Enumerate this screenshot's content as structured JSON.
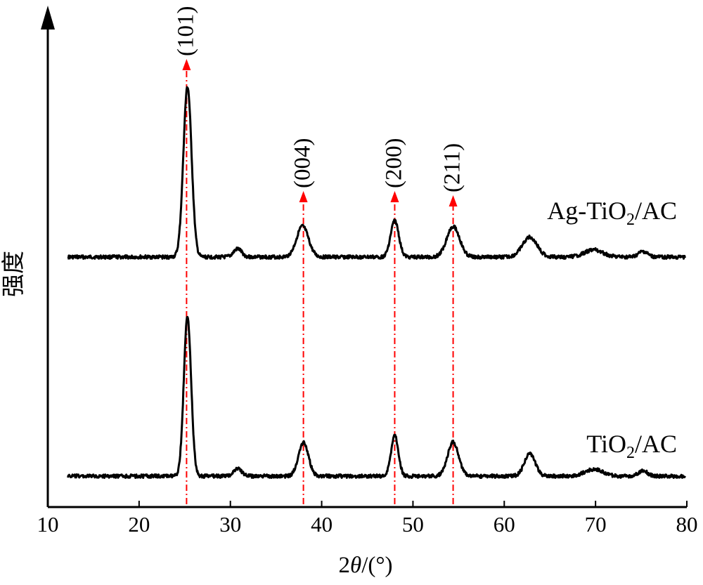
{
  "chart_data": {
    "type": "line",
    "xlabel": "2θ/(°)",
    "ylabel": "强度",
    "xlim": [
      10,
      80
    ],
    "xticks": [
      10,
      20,
      30,
      40,
      50,
      60,
      70,
      80
    ],
    "grid": false,
    "legend": "labels beside traces",
    "series": [
      {
        "name": "Ag-TiO2/AC",
        "label_main": "Ag-TiO",
        "label_sub": "2",
        "label_tail": "/AC",
        "baseline": 0.0,
        "peaks": [
          {
            "x": 25.3,
            "h": 0.94,
            "w": 0.45
          },
          {
            "x": 30.8,
            "h": 0.045,
            "w": 0.45
          },
          {
            "x": 37.9,
            "h": 0.17,
            "w": 0.65
          },
          {
            "x": 48.0,
            "h": 0.2,
            "w": 0.45
          },
          {
            "x": 54.4,
            "h": 0.17,
            "w": 0.7
          },
          {
            "x": 62.8,
            "h": 0.11,
            "w": 0.8
          },
          {
            "x": 69.8,
            "h": 0.04,
            "w": 1.0
          },
          {
            "x": 75.2,
            "h": 0.03,
            "w": 0.5
          }
        ]
      },
      {
        "name": "TiO2/AC",
        "label_main": "TiO",
        "label_sub": "2",
        "label_tail": "/AC",
        "baseline": 0.0,
        "peaks": [
          {
            "x": 25.3,
            "h": 0.94,
            "w": 0.4
          },
          {
            "x": 30.8,
            "h": 0.045,
            "w": 0.45
          },
          {
            "x": 38.0,
            "h": 0.2,
            "w": 0.55
          },
          {
            "x": 48.0,
            "h": 0.24,
            "w": 0.4
          },
          {
            "x": 54.4,
            "h": 0.2,
            "w": 0.6
          },
          {
            "x": 62.8,
            "h": 0.13,
            "w": 0.6
          },
          {
            "x": 69.8,
            "h": 0.04,
            "w": 1.0
          },
          {
            "x": 75.2,
            "h": 0.03,
            "w": 0.5
          }
        ]
      }
    ],
    "annotations": [
      {
        "label": "(101)",
        "x": 25.2
      },
      {
        "label": "(004)",
        "x": 38.0
      },
      {
        "label": "(200)",
        "x": 48.0
      },
      {
        "label": "(211)",
        "x": 54.4
      }
    ],
    "colors": {
      "trace": "#000000",
      "marker": "#ff0000"
    }
  }
}
